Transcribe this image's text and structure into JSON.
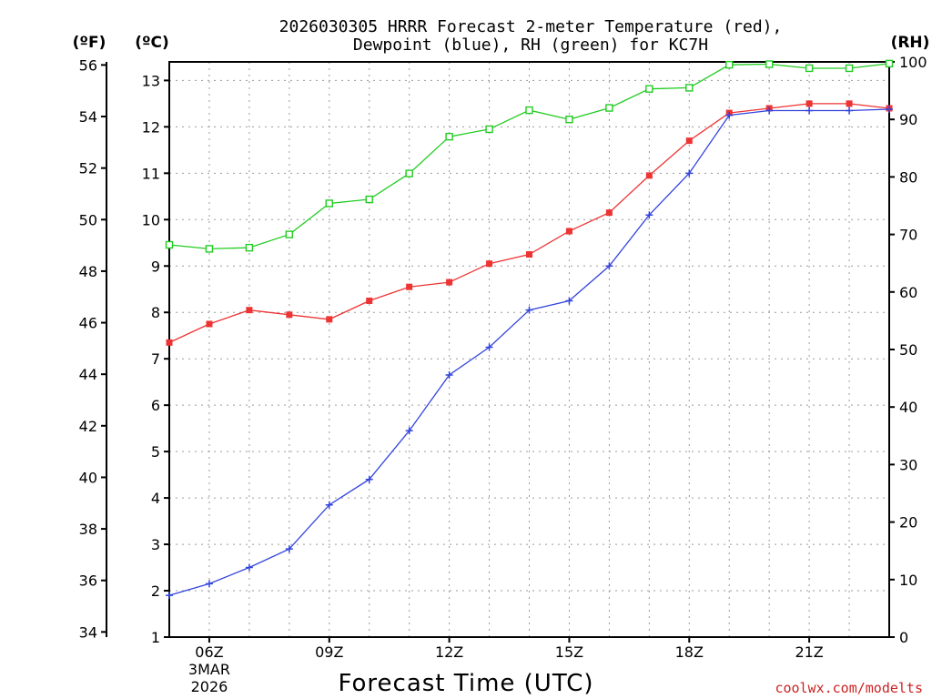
{
  "chart_data": {
    "type": "line",
    "title_line1": "2026030305 HRRR Forecast 2-meter Temperature (red),",
    "title_line2": "Dewpoint (blue), RH (green) for KC7H",
    "xlabel": "Forecast Time (UTC)",
    "credit": "coolwx.com/modelts",
    "units": {
      "fahrenheit": "(ºF)",
      "celsius": "(ºC)",
      "rh": "(RH)"
    },
    "x": [
      5,
      6,
      7,
      8,
      9,
      10,
      11,
      12,
      13,
      14,
      15,
      16,
      17,
      18,
      19,
      20,
      21,
      22,
      23
    ],
    "xlim": [
      5,
      23
    ],
    "x_ticks": [
      {
        "x": 6,
        "label": "06Z",
        "sub1": "3MAR",
        "sub2": "2026"
      },
      {
        "x": 9,
        "label": "09Z"
      },
      {
        "x": 12,
        "label": "12Z"
      },
      {
        "x": 15,
        "label": "15Z"
      },
      {
        "x": 18,
        "label": "18Z"
      },
      {
        "x": 21,
        "label": "21Z"
      }
    ],
    "celsius_axis": {
      "ylim": [
        1,
        13.4
      ],
      "ticks": [
        "1",
        "2",
        "3",
        "4",
        "5",
        "6",
        "7",
        "8",
        "9",
        "10",
        "11",
        "12",
        "13"
      ]
    },
    "fahrenheit_axis": {
      "ylim": [
        33.8,
        56.12
      ],
      "ticks": [
        "34",
        "36",
        "38",
        "40",
        "42",
        "44",
        "46",
        "48",
        "50",
        "52",
        "54",
        "56"
      ]
    },
    "rh_axis": {
      "ylim": [
        0,
        100
      ],
      "ticks": [
        "0",
        "10",
        "20",
        "30",
        "40",
        "50",
        "60",
        "70",
        "80",
        "90",
        "100"
      ]
    },
    "series": [
      {
        "name": "Temperature",
        "axis": "celsius",
        "color": "#ee3333",
        "marker": "filled-square",
        "values": [
          7.35,
          7.75,
          8.05,
          7.95,
          7.85,
          8.25,
          8.55,
          8.65,
          9.05,
          9.25,
          9.75,
          10.15,
          10.95,
          11.7,
          12.3,
          12.4,
          12.5,
          12.5,
          12.4
        ]
      },
      {
        "name": "Dewpoint",
        "axis": "celsius",
        "color": "#3344dd",
        "marker": "plus",
        "values": [
          1.9,
          2.15,
          2.5,
          2.9,
          3.85,
          4.4,
          5.45,
          6.65,
          7.25,
          8.05,
          8.25,
          9.0,
          10.1,
          11.0,
          12.25,
          12.35,
          12.35,
          12.35,
          12.38
        ]
      },
      {
        "name": "RH",
        "axis": "rh",
        "color": "#22cc22",
        "marker": "open-square",
        "values": [
          68.2,
          67.5,
          67.7,
          70.0,
          75.4,
          76.1,
          80.6,
          87.0,
          88.3,
          91.6,
          90.0,
          92.0,
          95.3,
          95.5,
          99.5,
          99.6,
          98.9,
          98.9,
          99.7
        ]
      }
    ]
  }
}
